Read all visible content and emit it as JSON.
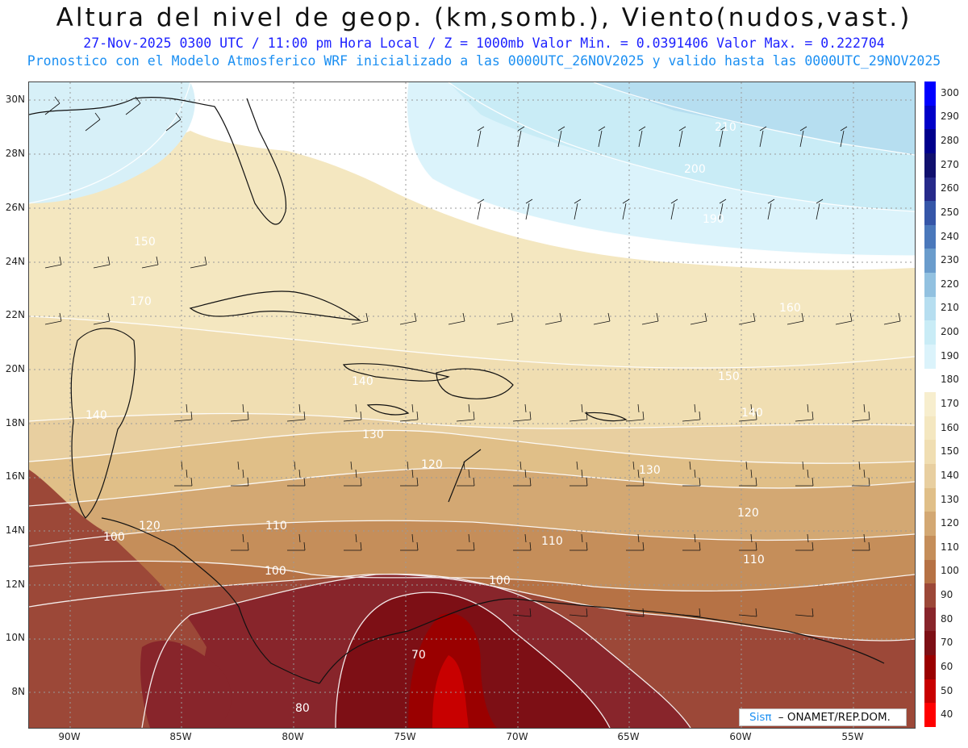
{
  "header": {
    "title": "Altura del nivel de geop. (km,somb.), Viento(nudos,vast.)",
    "line1": "27-Nov-2025 0300 UTC / 11:00 pm Hora Local / Z = 1000mb Valor Min. = 0.0391406  Valor Max. = 0.222704",
    "line2": "Pronostico con el Modelo Atmosferico WRF inicializado a las 0000UTC_26NOV2025 y valido hasta las  0000UTC_29NOV2025"
  },
  "map": {
    "lat_labels": [
      "30N",
      "28N",
      "26N",
      "24N",
      "22N",
      "20N",
      "18N",
      "16N",
      "14N",
      "12N",
      "10N",
      "8N"
    ],
    "lon_labels": [
      "90W",
      "85W",
      "80W",
      "75W",
      "70W",
      "65W",
      "60W",
      "55W"
    ],
    "contour_labels": [
      "210",
      "200",
      "190",
      "170",
      "160",
      "150",
      "140",
      "140",
      "130",
      "130",
      "120",
      "120",
      "120",
      "110",
      "110",
      "110",
      "100",
      "100",
      "100",
      "80",
      "70",
      "150",
      "140"
    ]
  },
  "colorbar": {
    "levels": [
      "300",
      "290",
      "280",
      "270",
      "260",
      "250",
      "240",
      "230",
      "220",
      "210",
      "200",
      "190",
      "180",
      "170",
      "160",
      "150",
      "140",
      "130",
      "120",
      "110",
      "100",
      "90",
      "80",
      "70",
      "60",
      "50",
      "40"
    ],
    "colors": [
      "#0000ff",
      "#0000c8",
      "#00008c",
      "#10106e",
      "#262a8a",
      "#3556a8",
      "#4a78bb",
      "#6a9ccc",
      "#92c1e0",
      "#b6def0",
      "#c9ecf6",
      "#dbf3fb",
      "#ffffff",
      "#f7eece",
      "#f4e7c0",
      "#f0deb2",
      "#e8cfa0",
      "#e0bf88",
      "#d3a873",
      "#c58e5a",
      "#b67245",
      "#9c4838",
      "#88252b",
      "#7d0f15",
      "#9a0000",
      "#c80000",
      "#ff0000"
    ]
  },
  "credit": {
    "sis": "Sisπ",
    "org": "– ONAMET/REP.DOM."
  }
}
